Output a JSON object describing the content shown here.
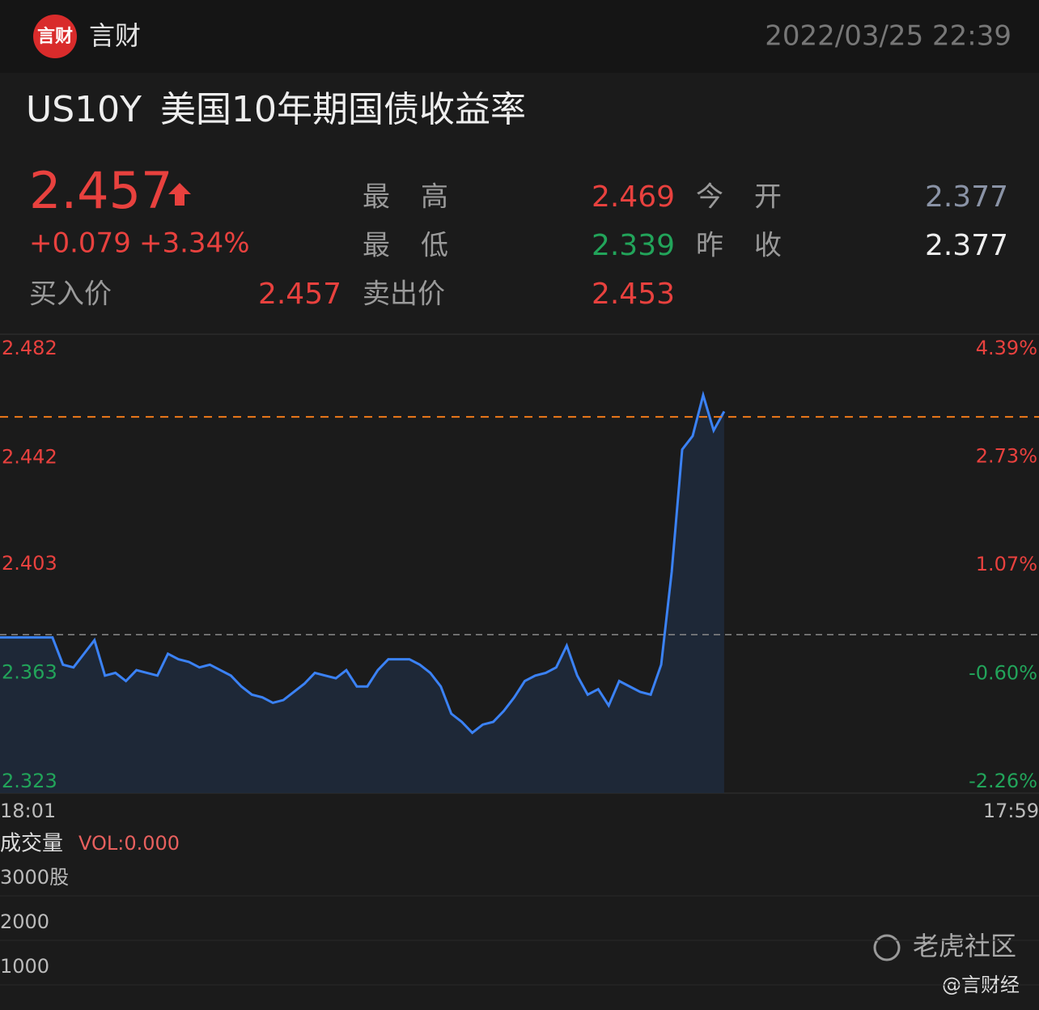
{
  "header": {
    "logo": "言财",
    "brand": "言财",
    "datetime": "2022/03/25 22:39"
  },
  "quote": {
    "symbol": "US10Y",
    "name": "美国10年期国债收益率",
    "price": 2.457,
    "change": "+0.079",
    "change_pct": "+3.34%",
    "high_label": "最高",
    "high": 2.469,
    "low_label": "最低",
    "low": 2.339,
    "open_label": "今开",
    "open": 2.377,
    "prev_close_label": "昨收",
    "prev_close": 2.377,
    "bid_label": "买入价",
    "bid": 2.457,
    "ask_label": "卖出价",
    "ask": 2.453
  },
  "chart_data": {
    "type": "line",
    "categories": [
      "18:01",
      null,
      null,
      null,
      null,
      null,
      null,
      null,
      null,
      null,
      null,
      null,
      null,
      null,
      null,
      null,
      null,
      null,
      null,
      null,
      null,
      null,
      null,
      null,
      null,
      null,
      null,
      null,
      null,
      null,
      null,
      null,
      null,
      null,
      null,
      null,
      null,
      null,
      null,
      null,
      null,
      null,
      null,
      null,
      null,
      null,
      null,
      null,
      null,
      null,
      null,
      null,
      null,
      null,
      null,
      null,
      null,
      null,
      null,
      null,
      null,
      null,
      null,
      null,
      null,
      null,
      null,
      null,
      null,
      null,
      null,
      null,
      null,
      null,
      null,
      null,
      null,
      null,
      null,
      null,
      null,
      null,
      null,
      null,
      null,
      null,
      null,
      null,
      null,
      null,
      null,
      null,
      null,
      null,
      null,
      null,
      null,
      null,
      null,
      "17:59"
    ],
    "series": [
      {
        "color": "#3b82f6",
        "values": [
          2.376,
          2.376,
          2.376,
          2.376,
          2.376,
          2.376,
          2.366,
          2.365,
          2.37,
          2.375,
          2.362,
          2.363,
          2.36,
          2.364,
          2.363,
          2.362,
          2.37,
          2.368,
          2.367,
          2.365,
          2.366,
          2.364,
          2.362,
          2.358,
          2.355,
          2.354,
          2.352,
          2.353,
          2.356,
          2.359,
          2.363,
          2.362,
          2.361,
          2.364,
          2.358,
          2.358,
          2.364,
          2.368,
          2.368,
          2.368,
          2.366,
          2.363,
          2.358,
          2.348,
          2.345,
          2.341,
          2.344,
          2.345,
          2.349,
          2.354,
          2.36,
          2.362,
          2.363,
          2.365,
          2.373,
          2.362,
          2.355,
          2.357,
          2.351,
          2.36,
          2.358,
          2.356,
          2.355,
          2.366,
          2.4,
          2.445,
          2.45,
          2.465,
          2.452,
          2.459,
          null,
          null,
          null,
          null,
          null,
          null,
          null,
          null,
          null,
          null,
          null,
          null,
          null,
          null,
          null,
          null,
          null,
          null,
          null,
          null,
          null,
          null,
          null,
          null,
          null,
          null,
          null,
          null,
          null,
          null
        ]
      }
    ],
    "ylim": [
      2.323,
      2.482
    ],
    "yticks": [
      2.482,
      2.442,
      2.403,
      2.363,
      2.323
    ],
    "y2lim": [
      -2.26,
      4.39
    ],
    "y2ticks": [
      {
        "value": 4.39,
        "label": "4.39%"
      },
      {
        "value": 2.73,
        "label": "2.73%"
      },
      {
        "value": 1.07,
        "label": "1.07%"
      },
      {
        "value": -0.6,
        "label": "-0.60%"
      },
      {
        "value": -2.26,
        "label": "-2.26%"
      }
    ],
    "up_color": "#e8413e",
    "down_color": "#22a45a",
    "price_line_color": "#f07a1a"
  },
  "volume": {
    "title": "成交量",
    "label": "VOL:0.000",
    "ylim": [
      0,
      3000
    ],
    "yticks": [
      {
        "value": 3000,
        "label": "3000股"
      },
      2000,
      1000
    ]
  },
  "footer": {
    "watermark": "老虎社区",
    "credit": "@言财经"
  }
}
